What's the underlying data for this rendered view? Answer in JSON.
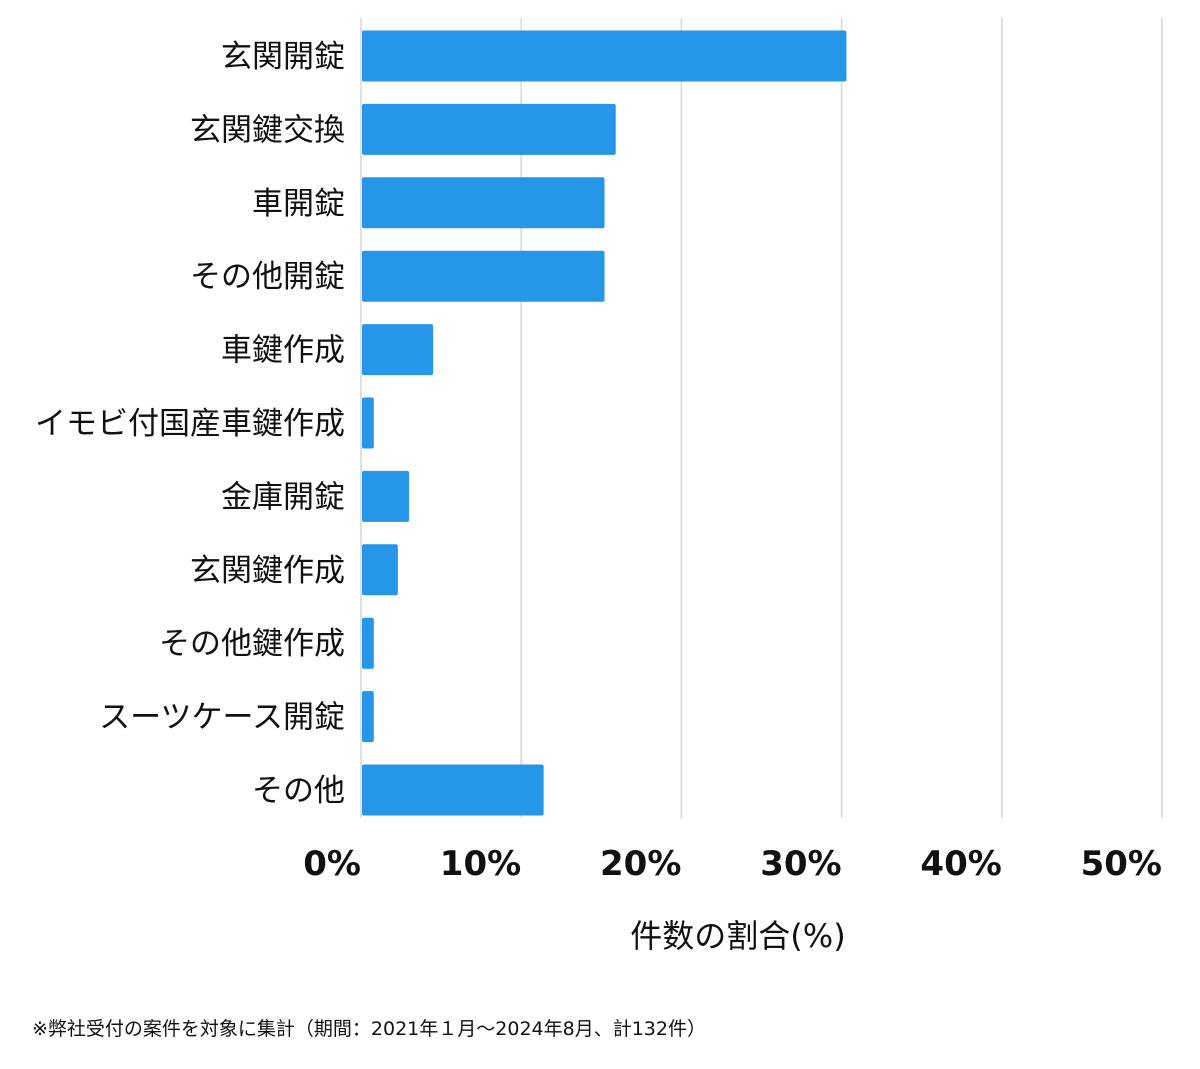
{
  "chart_data": {
    "type": "bar",
    "orientation": "horizontal",
    "categories": [
      "玄関開錠",
      "玄関鍵交換",
      "車開錠",
      "その他開錠",
      "車鍵作成",
      "イモビ付国産車鍵作成",
      "金庫開錠",
      "玄関鍵作成",
      "その他鍵作成",
      "スーツケース開錠",
      "その他"
    ],
    "values": [
      30.3,
      15.9,
      15.2,
      15.2,
      4.5,
      0.8,
      3.0,
      2.3,
      0.8,
      0.8,
      11.4
    ],
    "xlabel": "件数の割合(%)",
    "ylabel": "",
    "xlim": [
      0,
      50
    ],
    "ticks": [
      {
        "value": 0,
        "label": "0%"
      },
      {
        "value": 10,
        "label": "10%"
      },
      {
        "value": 20,
        "label": "20%"
      },
      {
        "value": 30,
        "label": "30%"
      },
      {
        "value": 40,
        "label": "40%"
      },
      {
        "value": 50,
        "label": "50%"
      }
    ],
    "grid": "vertical",
    "bar_color": "#2596e8",
    "grid_color": "#d6d6d6"
  },
  "footnote": "※弊社受付の案件を対象に集計（期間：2021年１月〜2024年8月、計132件）"
}
